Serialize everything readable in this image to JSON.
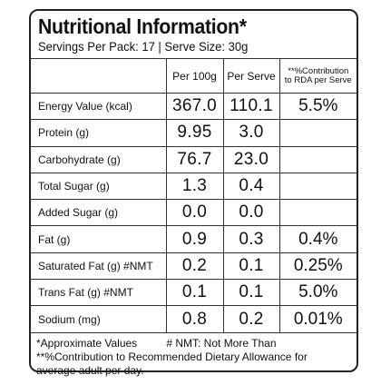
{
  "title": "Nutritional Information*",
  "servings": "Servings Per Pack: 17 | Serve Size: 30g",
  "headers": {
    "per100": "Per 100g",
    "perServe": "Per Serve",
    "rda_line1": "**%Contribution",
    "rda_line2": "to RDA per Serve"
  },
  "rows": [
    {
      "label": "Energy Value (kcal)",
      "per100": "367.0",
      "perServe": "110.1",
      "rda": "5.5%"
    },
    {
      "label": "Protein (g)",
      "per100": "9.95",
      "perServe": "3.0",
      "rda": ""
    },
    {
      "label": "Carbohydrate (g)",
      "per100": "76.7",
      "perServe": "23.0",
      "rda": ""
    },
    {
      "label": "Total Sugar (g)",
      "per100": "1.3",
      "perServe": "0.4",
      "rda": ""
    },
    {
      "label": "Added Sugar (g)",
      "per100": "0.0",
      "perServe": "0.0",
      "rda": ""
    },
    {
      "label": "Fat (g)",
      "per100": "0.9",
      "perServe": "0.3",
      "rda": "0.4%"
    },
    {
      "label": "Saturated Fat (g) #NMT",
      "per100": "0.2",
      "perServe": "0.1",
      "rda": "0.25%"
    },
    {
      "label": "Trans Fat (g) #NMT",
      "per100": "0.1",
      "perServe": "0.1",
      "rda": "5.0%"
    },
    {
      "label": "Sodium (mg)",
      "per100": "0.8",
      "perServe": "0.2",
      "rda": "0.01%"
    }
  ],
  "footnotes": {
    "approx": "*Approximate Values",
    "nmt": "# NMT: Not More Than",
    "rda": "**%Contribution to Recommended Dietary Allowance for average adult per day."
  }
}
